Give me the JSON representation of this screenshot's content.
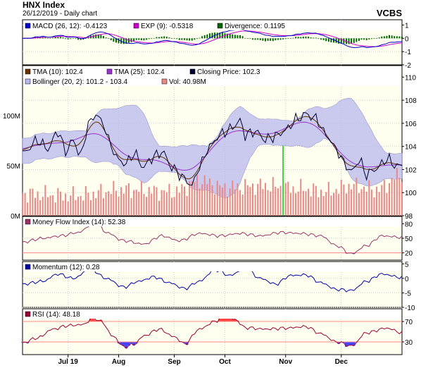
{
  "header": {
    "title": "HNX Index",
    "subtitle": "26/12/2019 - Daily chart",
    "vendor": "VCBS"
  },
  "colors": {
    "macd": "#0000cc",
    "exp": "#cc00cc",
    "divergence": "#006600",
    "tma10": "#663300",
    "tma25": "#9933cc",
    "close": "#000033",
    "bollinger_fill": "#b8b8ee",
    "volume": "#e88888",
    "mfi": "#993366",
    "momentum": "#0000aa",
    "rsi": "#990033",
    "hot": "#ff4444",
    "cold": "#4444ff",
    "panel_bg": "#fffff0",
    "threshold": "#ff8888"
  },
  "chart_data": [
    {
      "type": "line",
      "panel": "macd",
      "legend": [
        {
          "key": "macd",
          "text": "MACD (26, 12): -0.4123"
        },
        {
          "key": "exp",
          "text": "EXP (9): -0.5318"
        },
        {
          "key": "divergence",
          "text": "Divergence: 0.1195"
        }
      ],
      "ylim": [
        -2,
        1.4
      ],
      "yticks": [
        "1",
        "0",
        "-1",
        "-2"
      ]
    },
    {
      "type": "line",
      "panel": "price",
      "legend": [
        {
          "key": "tma10",
          "text": "TMA (10): 102.4"
        },
        {
          "key": "tma25",
          "text": "TMA (25): 102.4"
        },
        {
          "key": "close",
          "text": "Closing Price: 102.3"
        },
        {
          "key": "bollinger_fill",
          "text": "Bollinger (20, 2): 101.2 - 103.4"
        },
        {
          "key": "volume",
          "text": "Vol: 40.98M"
        }
      ],
      "ylim": [
        98,
        111
      ],
      "yticks": [
        "110",
        "108",
        "106",
        "104",
        "102",
        "100",
        "98"
      ],
      "volume_ticks": [
        "100M",
        "50M",
        "0M"
      ],
      "volume_max": 150,
      "close_anchors": [
        [
          0,
          103.4
        ],
        [
          6,
          104.5
        ],
        [
          10,
          103.8
        ],
        [
          14,
          105.3
        ],
        [
          17,
          103.6
        ],
        [
          20,
          104.5
        ],
        [
          23,
          103.2
        ],
        [
          26,
          105.9
        ],
        [
          29,
          106.8
        ],
        [
          32,
          105.9
        ],
        [
          35,
          104.0
        ],
        [
          38,
          102.8
        ],
        [
          41,
          102.5
        ],
        [
          44,
          103.4
        ],
        [
          48,
          102.2
        ],
        [
          51,
          103.0
        ],
        [
          55,
          103.5
        ],
        [
          60,
          102.0
        ],
        [
          64,
          101.2
        ],
        [
          67,
          100.6
        ],
        [
          70,
          102.3
        ],
        [
          74,
          104.0
        ],
        [
          78,
          105.0
        ],
        [
          82,
          105.5
        ],
        [
          86,
          106.2
        ],
        [
          88,
          105.0
        ],
        [
          92,
          105.3
        ],
        [
          96,
          104.6
        ],
        [
          100,
          104.9
        ],
        [
          104,
          105.4
        ],
        [
          108,
          106.3
        ],
        [
          112,
          106.8
        ],
        [
          116,
          106.4
        ],
        [
          120,
          105.0
        ],
        [
          124,
          103.8
        ],
        [
          127,
          102.6
        ],
        [
          130,
          101.8
        ],
        [
          133,
          102.8
        ],
        [
          136,
          101.6
        ],
        [
          140,
          102.1
        ],
        [
          144,
          102.9
        ],
        [
          148,
          102.3
        ],
        [
          150,
          102.3
        ]
      ],
      "volume_anchors": [
        [
          0,
          22
        ],
        [
          20,
          20
        ],
        [
          40,
          26
        ],
        [
          60,
          24
        ],
        [
          70,
          35
        ],
        [
          80,
          28
        ],
        [
          95,
          30
        ],
        [
          110,
          27
        ],
        [
          120,
          24
        ],
        [
          130,
          30
        ],
        [
          140,
          26
        ],
        [
          150,
          41
        ]
      ]
    },
    {
      "type": "line",
      "panel": "mfi",
      "legend": [
        {
          "key": "mfi",
          "text": "Money Flow Index (14): 52.38"
        }
      ],
      "ylim": [
        5,
        95
      ],
      "yticks": [
        "80",
        "50",
        "20"
      ],
      "thresholds": [
        80,
        20
      ],
      "anchors": [
        [
          0,
          42
        ],
        [
          8,
          50
        ],
        [
          15,
          55
        ],
        [
          22,
          62
        ],
        [
          29,
          85
        ],
        [
          33,
          62
        ],
        [
          40,
          45
        ],
        [
          48,
          38
        ],
        [
          55,
          55
        ],
        [
          62,
          45
        ],
        [
          70,
          60
        ],
        [
          78,
          55
        ],
        [
          86,
          60
        ],
        [
          94,
          55
        ],
        [
          102,
          62
        ],
        [
          110,
          60
        ],
        [
          118,
          55
        ],
        [
          124,
          35
        ],
        [
          130,
          18
        ],
        [
          136,
          35
        ],
        [
          142,
          55
        ],
        [
          150,
          52
        ]
      ]
    },
    {
      "type": "line",
      "panel": "momentum",
      "legend": [
        {
          "key": "momentum",
          "text": "Momentum (12): 0.28"
        }
      ],
      "ylim": [
        -10,
        5.8
      ],
      "yticks": [
        "5",
        "0",
        "-5",
        "-10"
      ],
      "anchors": [
        [
          0,
          -2
        ],
        [
          8,
          -1
        ],
        [
          14,
          1.5
        ],
        [
          20,
          0
        ],
        [
          27,
          3.2
        ],
        [
          33,
          0
        ],
        [
          40,
          -3
        ],
        [
          46,
          -1
        ],
        [
          52,
          0.5
        ],
        [
          58,
          -1.5
        ],
        [
          64,
          -3.5
        ],
        [
          70,
          -1
        ],
        [
          76,
          3
        ],
        [
          82,
          1
        ],
        [
          88,
          3.5
        ],
        [
          94,
          0
        ],
        [
          100,
          -2
        ],
        [
          106,
          1
        ],
        [
          112,
          1.2
        ],
        [
          118,
          -1.5
        ],
        [
          124,
          -3.8
        ],
        [
          130,
          -4.2
        ],
        [
          136,
          -1
        ],
        [
          142,
          1.5
        ],
        [
          150,
          0.3
        ]
      ]
    },
    {
      "type": "line",
      "panel": "rsi",
      "legend": [
        {
          "key": "rsi",
          "text": "RSI (14): 48.18"
        }
      ],
      "ylim": [
        5,
        95
      ],
      "yticks": [
        "70",
        "30"
      ],
      "thresholds": [
        70,
        30
      ],
      "anchors": [
        [
          0,
          28
        ],
        [
          6,
          38
        ],
        [
          12,
          55
        ],
        [
          18,
          62
        ],
        [
          24,
          64
        ],
        [
          28,
          78
        ],
        [
          31,
          70
        ],
        [
          36,
          40
        ],
        [
          40,
          20
        ],
        [
          44,
          25
        ],
        [
          48,
          42
        ],
        [
          54,
          55
        ],
        [
          60,
          40
        ],
        [
          64,
          26
        ],
        [
          70,
          55
        ],
        [
          76,
          70
        ],
        [
          80,
          82
        ],
        [
          84,
          74
        ],
        [
          88,
          58
        ],
        [
          96,
          55
        ],
        [
          104,
          57
        ],
        [
          112,
          60
        ],
        [
          118,
          46
        ],
        [
          124,
          30
        ],
        [
          130,
          22
        ],
        [
          136,
          48
        ],
        [
          144,
          57
        ],
        [
          150,
          48
        ]
      ],
      "xticks": [
        {
          "at": 18,
          "label": "Jul 19"
        },
        {
          "at": 38,
          "label": "Aug"
        },
        {
          "at": 60,
          "label": "Sep"
        },
        {
          "at": 80,
          "label": "Oct"
        },
        {
          "at": 104,
          "label": "Nov"
        },
        {
          "at": 126,
          "label": "Dec"
        }
      ]
    }
  ]
}
